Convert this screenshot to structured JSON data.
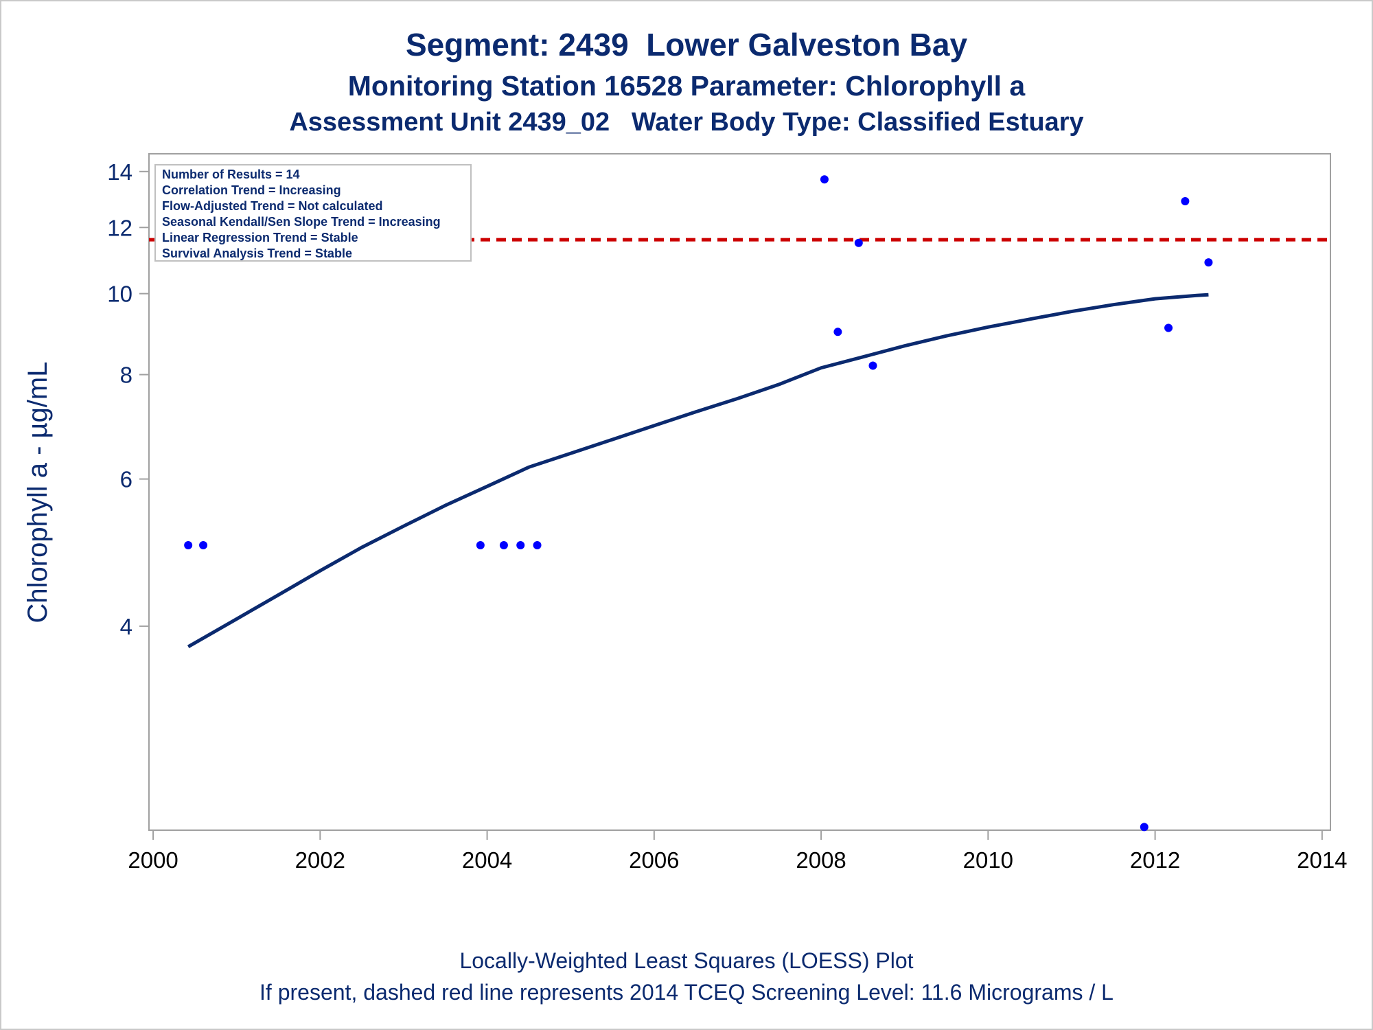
{
  "title": "Segment: 2439  Lower Galveston Bay",
  "subtitle": "Monitoring Station 16528 Parameter: Chlorophyll a",
  "subtitle2": "Assessment Unit 2439_02   Water Body Type: Classified Estuary",
  "footnotes": [
    "Locally-Weighted Least Squares (LOESS) Plot",
    "If present, dashed red line represents 2014 TCEQ Screening Level: 11.6 Micrograms / L"
  ],
  "info_box": [
    "Number of Results = 14",
    "Correlation Trend = Increasing",
    "Flow-Adjusted Trend = Not calculated",
    "Seasonal Kendall/Sen Slope Trend = Increasing",
    "Linear Regression Trend = Stable",
    "Survival Analysis Trend = Stable"
  ],
  "colors": {
    "text": "#0b2a6f",
    "points": "#0000ff",
    "loess_line": "#0b2a6f",
    "screening_line": "#cc0000",
    "axes": "#a0a0a0"
  },
  "chart_data": {
    "type": "scatter",
    "title": "Segment: 2439  Lower Galveston Bay",
    "xlabel": "",
    "ylabel": "Chlorophyll a -  µg/mL",
    "x_scale": "linear",
    "y_scale": "log",
    "xlim": [
      1999.95,
      2014.1
    ],
    "ylim": [
      2.28,
      14.7
    ],
    "x_ticks": [
      2000,
      2002,
      2004,
      2006,
      2008,
      2010,
      2012,
      2014
    ],
    "y_ticks": [
      4,
      6,
      8,
      10,
      12,
      14
    ],
    "grid": false,
    "points": [
      {
        "x": 2000.42,
        "y": 5.0
      },
      {
        "x": 2000.6,
        "y": 5.0
      },
      {
        "x": 2003.92,
        "y": 5.0
      },
      {
        "x": 2004.2,
        "y": 5.0
      },
      {
        "x": 2004.4,
        "y": 5.0
      },
      {
        "x": 2004.6,
        "y": 5.0
      },
      {
        "x": 2008.04,
        "y": 13.7
      },
      {
        "x": 2008.2,
        "y": 9.0
      },
      {
        "x": 2008.45,
        "y": 11.5
      },
      {
        "x": 2008.62,
        "y": 8.2
      },
      {
        "x": 2011.87,
        "y": 2.3
      },
      {
        "x": 2012.16,
        "y": 9.1
      },
      {
        "x": 2012.36,
        "y": 12.9
      },
      {
        "x": 2012.64,
        "y": 10.9
      }
    ],
    "loess_curve": {
      "x": [
        2000.42,
        2001.0,
        2001.5,
        2002.0,
        2002.5,
        2003.0,
        2003.5,
        2004.0,
        2004.5,
        2005.0,
        2005.5,
        2006.0,
        2006.5,
        2007.0,
        2007.5,
        2008.0,
        2008.5,
        2009.0,
        2009.5,
        2010.0,
        2010.5,
        2011.0,
        2011.5,
        2012.0,
        2012.5,
        2012.64
      ],
      "y": [
        3.78,
        4.08,
        4.36,
        4.66,
        4.97,
        5.27,
        5.58,
        5.88,
        6.2,
        6.44,
        6.69,
        6.95,
        7.22,
        7.49,
        7.79,
        8.15,
        8.4,
        8.66,
        8.9,
        9.12,
        9.32,
        9.52,
        9.7,
        9.86,
        9.95,
        9.97
      ]
    },
    "reference_line": {
      "y": 11.6,
      "style": "dashed",
      "color": "#cc0000"
    }
  }
}
